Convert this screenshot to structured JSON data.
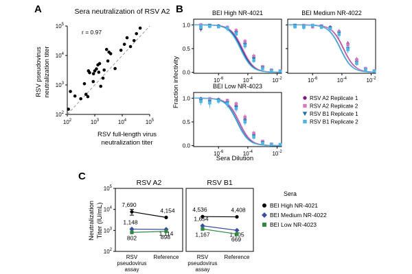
{
  "panels": {
    "a": "A",
    "b": "B",
    "c": "C"
  },
  "chart_data": [
    {
      "type": "scatter",
      "title": "Sera neutralization of RSV A2",
      "xlabel": "RSV full-length virus neutralization titer",
      "xlabel_lines": [
        "RSV full-length virus",
        "neutralization titer"
      ],
      "ylabel": "RSV pseudovirus neutralization titer",
      "ylabel_lines": [
        "RSV pseudovirus",
        "neutralization titer"
      ],
      "annotation": "r = 0.97",
      "xscale": "log",
      "yscale": "log",
      "xlim": [
        100,
        100000
      ],
      "ylim": [
        100,
        100000
      ],
      "x_ticks": [
        {
          "value": 100,
          "base": "10",
          "exp": "2"
        },
        {
          "value": 1000,
          "base": "10",
          "exp": "3"
        },
        {
          "value": 10000,
          "base": "10",
          "exp": "4"
        },
        {
          "value": 100000,
          "base": "10",
          "exp": "5"
        }
      ],
      "y_ticks": [
        {
          "value": 100,
          "base": "10",
          "exp": "2"
        },
        {
          "value": 1000,
          "base": "10",
          "exp": "3"
        },
        {
          "value": 10000,
          "base": "10",
          "exp": "4"
        },
        {
          "value": 100000,
          "base": "10",
          "exp": "5"
        }
      ],
      "trend_line": {
        "x": [
          100,
          100000
        ],
        "y": [
          100,
          100000
        ],
        "style": "dashed"
      },
      "points": [
        {
          "x": 110,
          "y": 150
        },
        {
          "x": 130,
          "y": 600
        },
        {
          "x": 190,
          "y": 420
        },
        {
          "x": 310,
          "y": 340
        },
        {
          "x": 420,
          "y": 1100
        },
        {
          "x": 480,
          "y": 480
        },
        {
          "x": 560,
          "y": 400
        },
        {
          "x": 590,
          "y": 3000
        },
        {
          "x": 650,
          "y": 2600
        },
        {
          "x": 880,
          "y": 1300
        },
        {
          "x": 900,
          "y": 2400
        },
        {
          "x": 1000,
          "y": 3000
        },
        {
          "x": 1150,
          "y": 3500
        },
        {
          "x": 1300,
          "y": 4800
        },
        {
          "x": 1400,
          "y": 2700
        },
        {
          "x": 1500,
          "y": 5300
        },
        {
          "x": 1650,
          "y": 900
        },
        {
          "x": 2000,
          "y": 1700
        },
        {
          "x": 2200,
          "y": 3200
        },
        {
          "x": 2700,
          "y": 16000
        },
        {
          "x": 3000,
          "y": 6500
        },
        {
          "x": 3300,
          "y": 13000
        },
        {
          "x": 3800,
          "y": 11500
        },
        {
          "x": 5500,
          "y": 3600
        },
        {
          "x": 9000,
          "y": 15000
        },
        {
          "x": 12000,
          "y": 24000
        },
        {
          "x": 15000,
          "y": 40000
        },
        {
          "x": 20000,
          "y": 20000
        },
        {
          "x": 27000,
          "y": 32000
        },
        {
          "x": 33000,
          "y": 55000
        },
        {
          "x": 45000,
          "y": 85000
        }
      ]
    },
    {
      "type": "line",
      "ylabel": "Fraction infectivity",
      "xlabel": "Sera Dilution",
      "xscale": "log",
      "xlim": [
        2e-08,
        0.02
      ],
      "ylim": [
        -0.02,
        1.12
      ],
      "y_ticks": [
        "0.0",
        "0.5",
        "1.0"
      ],
      "y_tick_values": [
        0,
        0.5,
        1
      ],
      "x_ticks": [
        {
          "value": 1e-06,
          "base": "10",
          "exp": "-6"
        },
        {
          "value": 0.0001,
          "base": "10",
          "exp": "-4"
        },
        {
          "value": 0.01,
          "base": "10",
          "exp": "-2"
        }
      ],
      "dilutions": [
        6.25e-08,
        2.5e-07,
        1e-06,
        4e-06,
        1.6e-05,
        6.4e-05,
        0.000256,
        0.001024,
        0.004096,
        0.016384
      ],
      "legend": [
        {
          "label": "RSV A2 Replicate 1",
          "color": "#7b1f7e",
          "marker": "circle"
        },
        {
          "label": "RSV A2 Replicate 2",
          "color": "#d57cc0",
          "marker": "square"
        },
        {
          "label": "RSV B1 Replicate 1",
          "color": "#1f6fa8",
          "marker": "triangle-down"
        },
        {
          "label": "RSV B1 Replicate 2",
          "color": "#4fb6e4",
          "marker": "square"
        }
      ],
      "subplots": [
        {
          "title": "BEI High NR-4021",
          "show_ylabels": true,
          "show_xlabels": true,
          "series": [
            {
              "name": "RSV A2 Replicate 1",
              "ic50": 4e-05,
              "hill": 1.1,
              "values": [
                0.92,
                0.97,
                0.98,
                0.94,
                0.86,
                0.63,
                0.32,
                0.11,
                0.04,
                0.02
              ],
              "err": [
                0.05,
                0.03,
                0.03,
                0.04,
                0.05,
                0.06,
                0.05,
                0.03,
                0.02,
                0.02
              ]
            },
            {
              "name": "RSV A2 Replicate 2",
              "ic50": 4.5e-05,
              "hill": 1.1,
              "values": [
                1.0,
                0.98,
                0.97,
                0.95,
                0.88,
                0.65,
                0.34,
                0.12,
                0.05,
                0.03
              ],
              "err": [
                0.04,
                0.03,
                0.03,
                0.04,
                0.05,
                0.05,
                0.05,
                0.03,
                0.02,
                0.02
              ]
            },
            {
              "name": "RSV B1 Replicate 1",
              "ic50": 3.5e-05,
              "hill": 1.1,
              "values": [
                0.93,
                0.99,
                0.97,
                0.92,
                0.83,
                0.58,
                0.28,
                0.09,
                0.03,
                0.02
              ],
              "err": [
                0.07,
                0.03,
                0.04,
                0.05,
                0.06,
                0.06,
                0.05,
                0.03,
                0.02,
                0.02
              ]
            },
            {
              "name": "RSV B1 Replicate 2",
              "ic50": 3e-05,
              "hill": 1.1,
              "values": [
                0.95,
                0.97,
                0.96,
                0.93,
                0.81,
                0.56,
                0.25,
                0.08,
                0.03,
                0.02
              ],
              "err": [
                0.05,
                0.04,
                0.03,
                0.05,
                0.06,
                0.07,
                0.05,
                0.03,
                0.02,
                0.02
              ]
            }
          ]
        },
        {
          "title": "BEI Medium NR-4022",
          "show_ylabels": false,
          "show_xlabels": true,
          "series": [
            {
              "name": "RSV A2 Replicate 1",
              "ic50": 0.00013,
              "hill": 1.1,
              "values": [
                0.98,
                0.96,
                0.99,
                0.97,
                0.95,
                0.86,
                0.6,
                0.27,
                0.08,
                0.03
              ],
              "err": [
                0.03,
                0.04,
                0.03,
                0.03,
                0.04,
                0.05,
                0.06,
                0.05,
                0.03,
                0.02
              ]
            },
            {
              "name": "RSV A2 Replicate 2",
              "ic50": 0.00012,
              "hill": 1.1,
              "values": [
                0.97,
                0.99,
                0.96,
                0.98,
                0.93,
                0.85,
                0.58,
                0.26,
                0.08,
                0.03
              ],
              "err": [
                0.03,
                0.03,
                0.04,
                0.03,
                0.04,
                0.05,
                0.06,
                0.05,
                0.03,
                0.02
              ]
            },
            {
              "name": "RSV B1 Replicate 1",
              "ic50": 8e-05,
              "hill": 1.1,
              "values": [
                0.99,
                0.97,
                0.98,
                0.96,
                0.93,
                0.82,
                0.5,
                0.2,
                0.06,
                0.02
              ],
              "err": [
                0.03,
                0.04,
                0.03,
                0.04,
                0.05,
                0.06,
                0.07,
                0.05,
                0.03,
                0.02
              ]
            },
            {
              "name": "RSV B1 Replicate 2",
              "ic50": 7.5e-05,
              "hill": 1.1,
              "values": [
                0.96,
                0.95,
                0.99,
                0.95,
                0.92,
                0.8,
                0.48,
                0.19,
                0.06,
                0.02
              ],
              "err": [
                0.04,
                0.05,
                0.03,
                0.04,
                0.05,
                0.09,
                0.08,
                0.05,
                0.03,
                0.02
              ]
            }
          ]
        },
        {
          "title": "BEI Low NR-4023",
          "show_ylabels": true,
          "show_xlabels": true,
          "series": [
            {
              "name": "RSV A2 Replicate 1",
              "ic50": 2.5e-05,
              "hill": 1.1,
              "values": [
                0.99,
                0.98,
                0.97,
                0.95,
                0.85,
                0.58,
                0.24,
                0.08,
                0.03,
                0.02
              ],
              "err": [
                0.04,
                0.03,
                0.04,
                0.04,
                0.05,
                0.06,
                0.05,
                0.03,
                0.02,
                0.02
              ]
            },
            {
              "name": "RSV A2 Replicate 2",
              "ic50": 2.7e-05,
              "hill": 1.1,
              "values": [
                0.97,
                0.99,
                0.96,
                0.95,
                0.88,
                0.6,
                0.26,
                0.09,
                0.03,
                0.02
              ],
              "err": [
                0.03,
                0.03,
                0.04,
                0.04,
                0.05,
                0.06,
                0.05,
                0.03,
                0.02,
                0.02
              ]
            },
            {
              "name": "RSV B1 Replicate 1",
              "ic50": 2e-05,
              "hill": 1.1,
              "values": [
                0.95,
                0.92,
                0.96,
                0.9,
                0.8,
                0.52,
                0.2,
                0.06,
                0.02,
                0.02
              ],
              "err": [
                0.06,
                0.08,
                0.05,
                0.07,
                0.07,
                0.07,
                0.05,
                0.03,
                0.02,
                0.02
              ]
            },
            {
              "name": "RSV B1 Replicate 2",
              "ic50": 1.8e-05,
              "hill": 1.1,
              "values": [
                0.93,
                0.9,
                0.94,
                0.88,
                0.78,
                0.5,
                0.18,
                0.05,
                0.02,
                0.02
              ],
              "err": [
                0.08,
                0.1,
                0.06,
                0.08,
                0.08,
                0.07,
                0.05,
                0.03,
                0.02,
                0.02
              ]
            }
          ]
        }
      ]
    },
    {
      "type": "line",
      "ylabel": "Neutralization Titer (IU/mL)",
      "ylabel_lines": [
        "Neutralization",
        "Titer (IU/mL)"
      ],
      "yscale": "log",
      "ylim": [
        100,
        100000
      ],
      "y_ticks": [
        {
          "value": 100,
          "base": "10",
          "exp": "2"
        },
        {
          "value": 1000,
          "base": "10",
          "exp": "3"
        },
        {
          "value": 10000,
          "base": "10",
          "exp": "4"
        },
        {
          "value": 100000,
          "base": "10",
          "exp": "5"
        }
      ],
      "categories": [
        "RSV pseudovirus assay",
        "Reference"
      ],
      "category_lines": [
        [
          "RSV",
          "pseudovirus",
          "assay"
        ],
        [
          "Reference"
        ]
      ],
      "legend_title": "Sera",
      "legend": [
        {
          "label": "BEI High NR-4021",
          "color": "#000000",
          "marker": "circle"
        },
        {
          "label": "BEI Medium NR-4022",
          "color": "#3a4fa0",
          "marker": "diamond"
        },
        {
          "label": "BEI Low NR-4023",
          "color": "#2f8a3f",
          "marker": "square"
        }
      ],
      "subplots": [
        {
          "title": "RSV A2",
          "series": [
            {
              "name": "BEI High NR-4021",
              "values": [
                7690,
                4154
              ],
              "labels": [
                "7,690",
                "4,154"
              ],
              "err": [
                2400,
                0
              ]
            },
            {
              "name": "BEI Medium NR-4022",
              "values": [
                1148,
                1114
              ],
              "labels": [
                "1,148",
                "1,114"
              ],
              "err": [
                0,
                0
              ]
            },
            {
              "name": "BEI Low NR-4023",
              "values": [
                802,
                898
              ],
              "labels": [
                "802",
                "898"
              ],
              "err": [
                0,
                0
              ]
            }
          ]
        },
        {
          "title": "RSV B1",
          "series": [
            {
              "name": "BEI High NR-4021",
              "values": [
                4536,
                4408
              ],
              "labels": [
                "4,536",
                "4,408"
              ],
              "err": [
                0,
                0
              ]
            },
            {
              "name": "BEI Medium NR-4022",
              "values": [
                1654,
                1005
              ],
              "labels": [
                "1,654",
                "1,005"
              ],
              "err": [
                0,
                0
              ]
            },
            {
              "name": "BEI Low NR-4023",
              "values": [
                1167,
                669
              ],
              "labels": [
                "1,167",
                "669"
              ],
              "err": [
                0,
                0
              ]
            }
          ]
        }
      ]
    }
  ]
}
